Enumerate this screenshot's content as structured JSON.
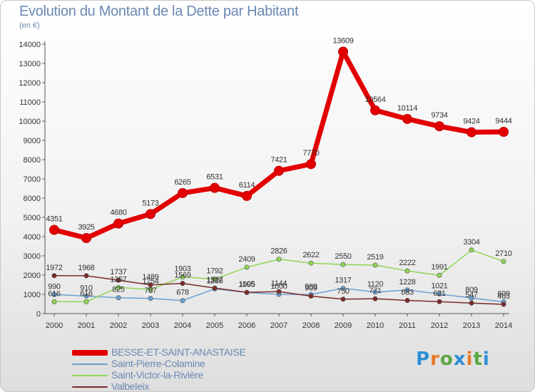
{
  "title": "Evolution du Montant de la Dette par Habitant",
  "subtitle": "(en €)",
  "logo_text": "Proxiti",
  "logo_colors": [
    "#2d8fd5",
    "#e8792a",
    "#5aa844",
    "#2d8fd5",
    "#e8792a",
    "#5aa844",
    "#2d8fd5"
  ],
  "chart_data": {
    "type": "line",
    "x": [
      2000,
      2001,
      2002,
      2003,
      2004,
      2005,
      2006,
      2007,
      2008,
      2009,
      2010,
      2011,
      2012,
      2013,
      2014
    ],
    "ylim": [
      0,
      14000
    ],
    "yticks": [
      0,
      1000,
      2000,
      3000,
      4000,
      5000,
      6000,
      7000,
      8000,
      9000,
      10000,
      11000,
      12000,
      13000,
      14000
    ],
    "grid": false,
    "legend": "bottom-left",
    "series": [
      {
        "name": "BESSE-ET-SAINT-ANASTAISE",
        "color": "#e30000",
        "values": [
          4351,
          3925,
          4680,
          5173,
          6265,
          6531,
          6114,
          7421,
          7770,
          13609,
          10564,
          10114,
          9734,
          9424,
          9444
        ]
      },
      {
        "name": "Saint-Pierre-Colamine",
        "color": "#6a9fd1",
        "values": [
          990,
          910,
          825,
          787,
          678,
          1286,
          1095,
          1000,
          989,
          1317,
          1120,
          1228,
          1021,
          809,
          609
        ]
      },
      {
        "name": "Saint-Victor-la-Rivière",
        "color": "#8fd656",
        "values": [
          616,
          616,
          1357,
          1254,
          1903,
          1792,
          2409,
          2826,
          2622,
          2550,
          2519,
          2222,
          1991,
          3304,
          2710
        ]
      },
      {
        "name": "Valbeleix",
        "color": "#7a2a2a",
        "values": [
          1972,
          1968,
          1737,
          1489,
          1569,
          1327,
          1105,
          1144,
          909,
          750,
          771,
          683,
          621,
          547,
          483
        ]
      }
    ]
  }
}
